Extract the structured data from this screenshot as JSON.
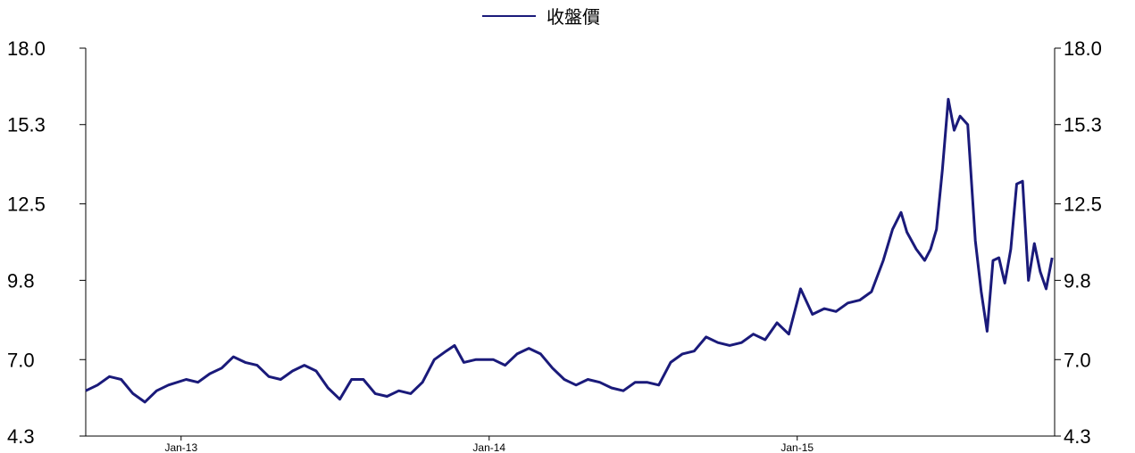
{
  "chart_data": {
    "type": "line",
    "legend": {
      "placement": "top-center"
    },
    "series": [
      {
        "name": "收盤價",
        "color": "#1a1a7a",
        "points": [
          [
            "2012-09-10",
            5.9
          ],
          [
            "2012-09-24",
            6.1
          ],
          [
            "2012-10-08",
            6.4
          ],
          [
            "2012-10-22",
            6.3
          ],
          [
            "2012-11-05",
            5.8
          ],
          [
            "2012-11-19",
            5.5
          ],
          [
            "2012-12-03",
            5.9
          ],
          [
            "2012-12-17",
            6.1
          ],
          [
            "2013-01-07",
            6.3
          ],
          [
            "2013-01-21",
            6.2
          ],
          [
            "2013-02-04",
            6.5
          ],
          [
            "2013-02-18",
            6.7
          ],
          [
            "2013-03-04",
            7.1
          ],
          [
            "2013-03-18",
            6.9
          ],
          [
            "2013-04-01",
            6.8
          ],
          [
            "2013-04-15",
            6.4
          ],
          [
            "2013-04-29",
            6.3
          ],
          [
            "2013-05-13",
            6.6
          ],
          [
            "2013-05-27",
            6.8
          ],
          [
            "2013-06-10",
            6.6
          ],
          [
            "2013-06-24",
            6.0
          ],
          [
            "2013-07-08",
            5.6
          ],
          [
            "2013-07-22",
            6.3
          ],
          [
            "2013-08-05",
            6.3
          ],
          [
            "2013-08-19",
            5.8
          ],
          [
            "2013-09-02",
            5.7
          ],
          [
            "2013-09-16",
            5.9
          ],
          [
            "2013-09-30",
            5.8
          ],
          [
            "2013-10-14",
            6.2
          ],
          [
            "2013-10-28",
            7.0
          ],
          [
            "2013-11-11",
            7.3
          ],
          [
            "2013-11-21",
            7.5
          ],
          [
            "2013-12-02",
            6.9
          ],
          [
            "2013-12-16",
            7.0
          ],
          [
            "2014-01-06",
            7.0
          ],
          [
            "2014-01-20",
            6.8
          ],
          [
            "2014-02-03",
            7.2
          ],
          [
            "2014-02-17",
            7.4
          ],
          [
            "2014-03-03",
            7.2
          ],
          [
            "2014-03-17",
            6.7
          ],
          [
            "2014-03-31",
            6.3
          ],
          [
            "2014-04-14",
            6.1
          ],
          [
            "2014-04-28",
            6.3
          ],
          [
            "2014-05-12",
            6.2
          ],
          [
            "2014-05-26",
            6.0
          ],
          [
            "2014-06-09",
            5.9
          ],
          [
            "2014-06-23",
            6.2
          ],
          [
            "2014-07-07",
            6.2
          ],
          [
            "2014-07-21",
            6.1
          ],
          [
            "2014-08-04",
            6.9
          ],
          [
            "2014-08-18",
            7.2
          ],
          [
            "2014-09-01",
            7.3
          ],
          [
            "2014-09-15",
            7.8
          ],
          [
            "2014-09-29",
            7.6
          ],
          [
            "2014-10-13",
            7.5
          ],
          [
            "2014-10-27",
            7.6
          ],
          [
            "2014-11-10",
            7.9
          ],
          [
            "2014-11-24",
            7.7
          ],
          [
            "2014-12-08",
            8.3
          ],
          [
            "2014-12-22",
            7.9
          ],
          [
            "2015-01-05",
            9.5
          ],
          [
            "2015-01-19",
            8.6
          ],
          [
            "2015-02-02",
            8.8
          ],
          [
            "2015-02-16",
            8.7
          ],
          [
            "2015-03-02",
            9.0
          ],
          [
            "2015-03-16",
            9.1
          ],
          [
            "2015-03-30",
            9.4
          ],
          [
            "2015-04-13",
            10.5
          ],
          [
            "2015-04-24",
            11.6
          ],
          [
            "2015-05-04",
            12.2
          ],
          [
            "2015-05-11",
            11.5
          ],
          [
            "2015-05-22",
            10.9
          ],
          [
            "2015-06-01",
            10.5
          ],
          [
            "2015-06-08",
            10.9
          ],
          [
            "2015-06-15",
            11.6
          ],
          [
            "2015-06-22",
            13.7
          ],
          [
            "2015-06-29",
            16.2
          ],
          [
            "2015-07-06",
            15.1
          ],
          [
            "2015-07-13",
            15.6
          ],
          [
            "2015-07-22",
            15.3
          ],
          [
            "2015-07-31",
            11.2
          ],
          [
            "2015-08-07",
            9.4
          ],
          [
            "2015-08-14",
            8.0
          ],
          [
            "2015-08-21",
            10.5
          ],
          [
            "2015-08-28",
            10.6
          ],
          [
            "2015-09-04",
            9.7
          ],
          [
            "2015-09-11",
            10.9
          ],
          [
            "2015-09-18",
            13.2
          ],
          [
            "2015-09-25",
            13.3
          ],
          [
            "2015-10-02",
            9.8
          ],
          [
            "2015-10-09",
            11.1
          ],
          [
            "2015-10-16",
            10.1
          ],
          [
            "2015-10-23",
            9.5
          ],
          [
            "2015-10-30",
            10.6
          ]
        ]
      }
    ],
    "x_axis": {
      "type": "date",
      "range": [
        "2012-09-10",
        "2015-11-02"
      ],
      "tick_labels": [
        {
          "label": "Jan-13",
          "date": "2013-01-01"
        },
        {
          "label": "Jan-14",
          "date": "2014-01-01"
        },
        {
          "label": "Jan-15",
          "date": "2015-01-01"
        }
      ]
    },
    "y_axis": {
      "range": [
        4.3,
        18.0
      ],
      "tick_labels": [
        "4.3",
        "7.0",
        "9.8",
        "12.5",
        "15.3",
        "18.0"
      ],
      "mirrored_right": true
    },
    "grid": false
  }
}
